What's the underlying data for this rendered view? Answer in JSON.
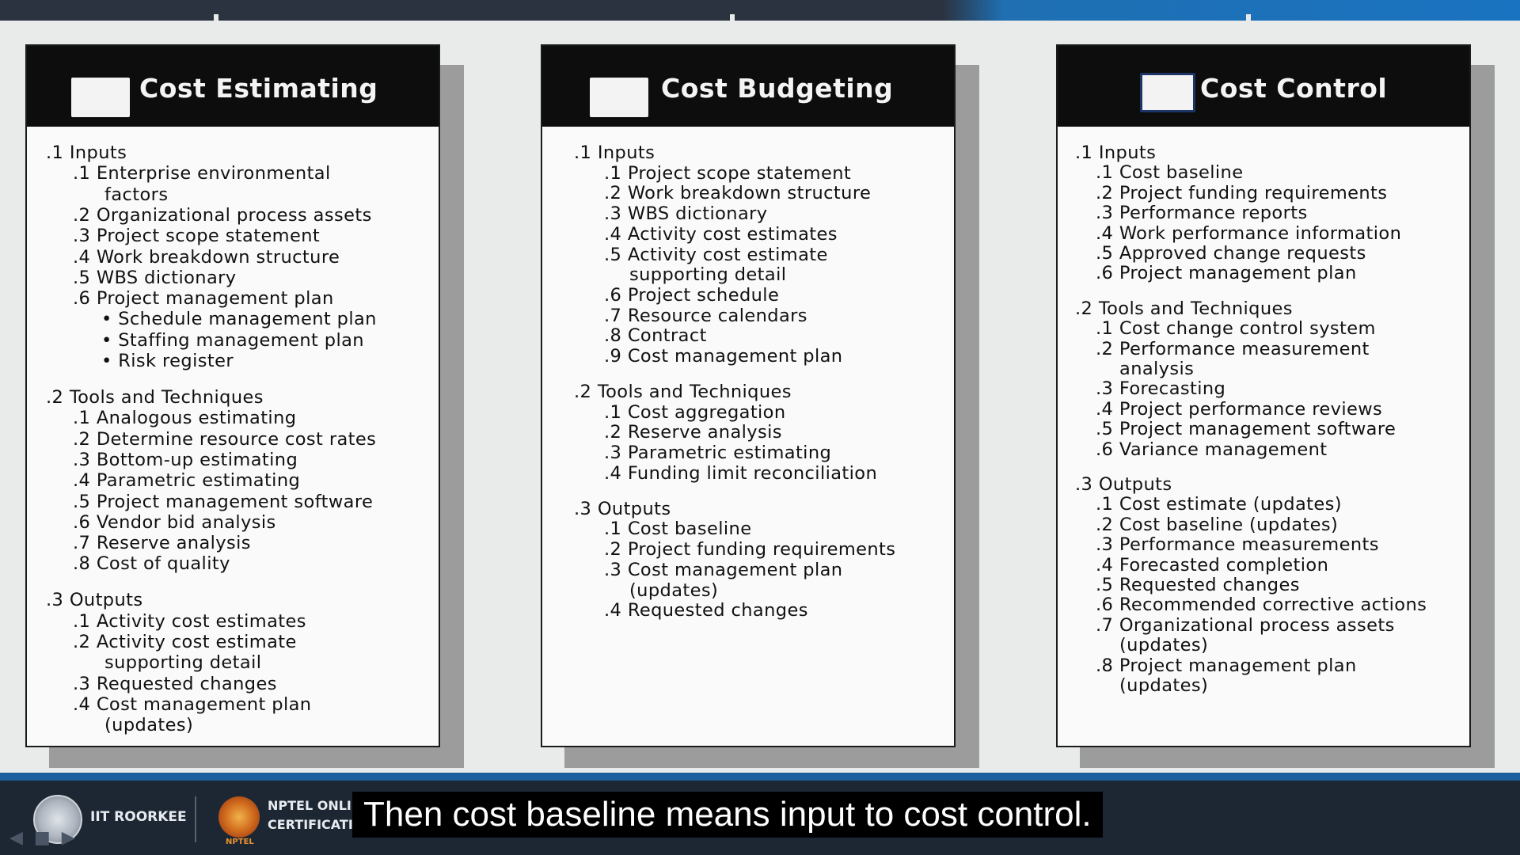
{
  "slide": {
    "panels": [
      {
        "id": "cost-estimating",
        "title": "Cost Estimating",
        "lines": [
          {
            "text": ".1  Inputs",
            "indent": 0
          },
          {
            "text": ".1  Enterprise environmental",
            "indent": 1
          },
          {
            "text": "factors",
            "indent": 2
          },
          {
            "text": ".2  Organizational process assets",
            "indent": 1
          },
          {
            "text": ".3  Project scope statement",
            "indent": 1
          },
          {
            "text": ".4  Work breakdown structure",
            "indent": 1
          },
          {
            "text": ".5  WBS dictionary",
            "indent": 1
          },
          {
            "text": ".6  Project management plan",
            "indent": 1
          },
          {
            "text": "• Schedule management plan",
            "indent": 3
          },
          {
            "text": "• Staffing management plan",
            "indent": 3
          },
          {
            "text": "• Risk register",
            "indent": 3
          },
          {
            "text": "",
            "indent": 0
          },
          {
            "text": ".2 Tools and Techniques",
            "indent": 0
          },
          {
            "text": ".1 Analogous estimating",
            "indent": 1
          },
          {
            "text": ".2 Determine resource cost rates",
            "indent": 1
          },
          {
            "text": ".3 Bottom-up estimating",
            "indent": 1
          },
          {
            "text": ".4 Parametric estimating",
            "indent": 1
          },
          {
            "text": ".5 Project management software",
            "indent": 1
          },
          {
            "text": ".6 Vendor bid analysis",
            "indent": 1
          },
          {
            "text": ".7 Reserve analysis",
            "indent": 1
          },
          {
            "text": ".8 Cost of quality",
            "indent": 1
          },
          {
            "text": "",
            "indent": 0
          },
          {
            "text": ".3 Outputs",
            "indent": 0
          },
          {
            "text": ".1  Activity cost estimates",
            "indent": 1
          },
          {
            "text": ".2  Activity cost estimate",
            "indent": 1
          },
          {
            "text": "supporting detail",
            "indent": 2
          },
          {
            "text": ".3  Requested changes",
            "indent": 1
          },
          {
            "text": ".4  Cost management plan",
            "indent": 1
          },
          {
            "text": "(updates)",
            "indent": 2
          }
        ]
      },
      {
        "id": "cost-budgeting",
        "title": "Cost Budgeting",
        "lines": [
          {
            "text": ".1 Inputs",
            "indent": 0
          },
          {
            "text": ".1 Project scope statement",
            "indent": 1
          },
          {
            "text": ".2 Work breakdown structure",
            "indent": 1
          },
          {
            "text": ".3 WBS dictionary",
            "indent": 1
          },
          {
            "text": ".4 Activity cost estimates",
            "indent": 1
          },
          {
            "text": ".5 Activity cost estimate",
            "indent": 1
          },
          {
            "text": "supporting detail",
            "indent": 2
          },
          {
            "text": ".6 Project schedule",
            "indent": 1
          },
          {
            "text": ".7 Resource calendars",
            "indent": 1
          },
          {
            "text": ".8 Contract",
            "indent": 1
          },
          {
            "text": ".9 Cost management plan",
            "indent": 1
          },
          {
            "text": "",
            "indent": 0
          },
          {
            "text": ".2 Tools and Techniques",
            "indent": 0
          },
          {
            "text": ".1 Cost aggregation",
            "indent": 1
          },
          {
            "text": ".2 Reserve analysis",
            "indent": 1
          },
          {
            "text": ".3 Parametric estimating",
            "indent": 1
          },
          {
            "text": ".4 Funding limit reconciliation",
            "indent": 1
          },
          {
            "text": "",
            "indent": 0
          },
          {
            "text": ".3 Outputs",
            "indent": 0
          },
          {
            "text": ".1 Cost baseline",
            "indent": 1
          },
          {
            "text": ".2 Project funding requirements",
            "indent": 1
          },
          {
            "text": ".3 Cost management plan",
            "indent": 1
          },
          {
            "text": "(updates)",
            "indent": 2
          },
          {
            "text": ".4 Requested changes",
            "indent": 1
          }
        ]
      },
      {
        "id": "cost-control",
        "title": "Cost Control",
        "lines": [
          {
            "text": ".1 Inputs",
            "indent": 0
          },
          {
            "text": ".1 Cost baseline",
            "indent": 1
          },
          {
            "text": ".2 Project funding requirements",
            "indent": 1
          },
          {
            "text": ".3 Performance reports",
            "indent": 1
          },
          {
            "text": ".4 Work performance information",
            "indent": 1
          },
          {
            "text": ".5 Approved change requests",
            "indent": 1
          },
          {
            "text": ".6 Project management plan",
            "indent": 1
          },
          {
            "text": "",
            "indent": 0
          },
          {
            "text": ".2 Tools and Techniques",
            "indent": 0
          },
          {
            "text": ".1 Cost change control system",
            "indent": 1
          },
          {
            "text": ".2 Performance measurement",
            "indent": 1
          },
          {
            "text": "analysis",
            "indent": 2
          },
          {
            "text": ".3 Forecasting",
            "indent": 1
          },
          {
            "text": ".4 Project performance reviews",
            "indent": 1
          },
          {
            "text": ".5 Project management software",
            "indent": 1
          },
          {
            "text": ".6 Variance management",
            "indent": 1
          },
          {
            "text": "",
            "indent": 0
          },
          {
            "text": ".3 Outputs",
            "indent": 0
          },
          {
            "text": ".1 Cost estimate (updates)",
            "indent": 1
          },
          {
            "text": ".2 Cost baseline (updates)",
            "indent": 1
          },
          {
            "text": ".3 Performance measurements",
            "indent": 1
          },
          {
            "text": ".4 Forecasted completion",
            "indent": 1
          },
          {
            "text": ".5 Requested changes",
            "indent": 1
          },
          {
            "text": ".6 Recommended corrective actions",
            "indent": 1
          },
          {
            "text": ".7 Organizational process assets",
            "indent": 1
          },
          {
            "text": "(updates)",
            "indent": 2
          },
          {
            "text": ".8 Project management plan",
            "indent": 1
          },
          {
            "text": "(updates)",
            "indent": 2
          }
        ]
      }
    ]
  },
  "footer": {
    "institute": "IIT ROORKEE",
    "nptel_line1": "NPTEL ONLINE",
    "nptel_line2": "CERTIFICATION COURSE",
    "nptel_logo_text": "NPTEL"
  },
  "caption": {
    "text": "Then cost baseline means input to cost control."
  },
  "icons": {
    "institute_logo": "iit-roorkee-seal-icon",
    "nptel_logo": "nptel-logo-icon",
    "nav": [
      "back-arrow-icon",
      "slides-icon",
      "forward-arrow-icon"
    ]
  }
}
